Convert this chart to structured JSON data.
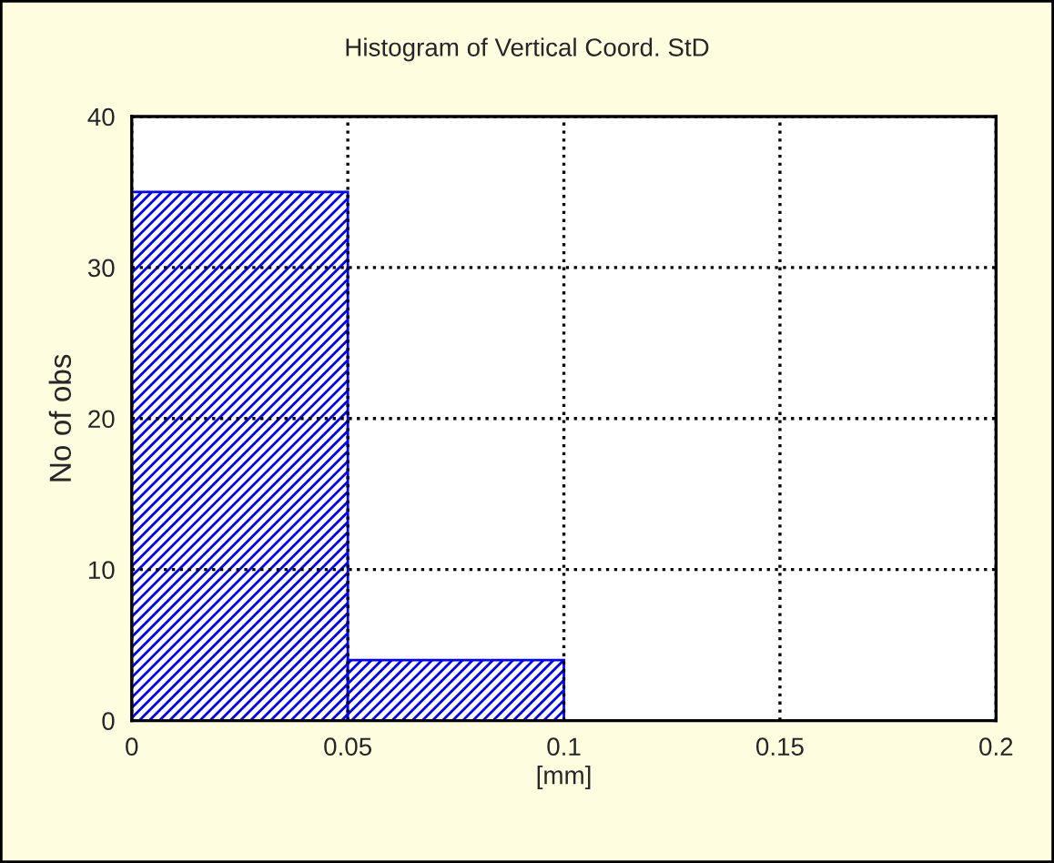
{
  "chart_data": {
    "type": "histogram",
    "title": "Histogram of Vertical Coord. StD",
    "xlabel": "[mm]",
    "ylabel": "No of obs",
    "bins": [
      0,
      0.05,
      0.1,
      0.15,
      0.2
    ],
    "values": [
      35,
      4,
      0,
      0
    ],
    "color": "#0000ff",
    "xlim": [
      0,
      0.2
    ],
    "xticks": [
      0,
      0.05,
      0.1,
      0.15,
      0.2
    ],
    "ylim": [
      0,
      40
    ],
    "yticks": [
      0,
      10,
      20,
      30,
      40
    ],
    "grid": true
  }
}
